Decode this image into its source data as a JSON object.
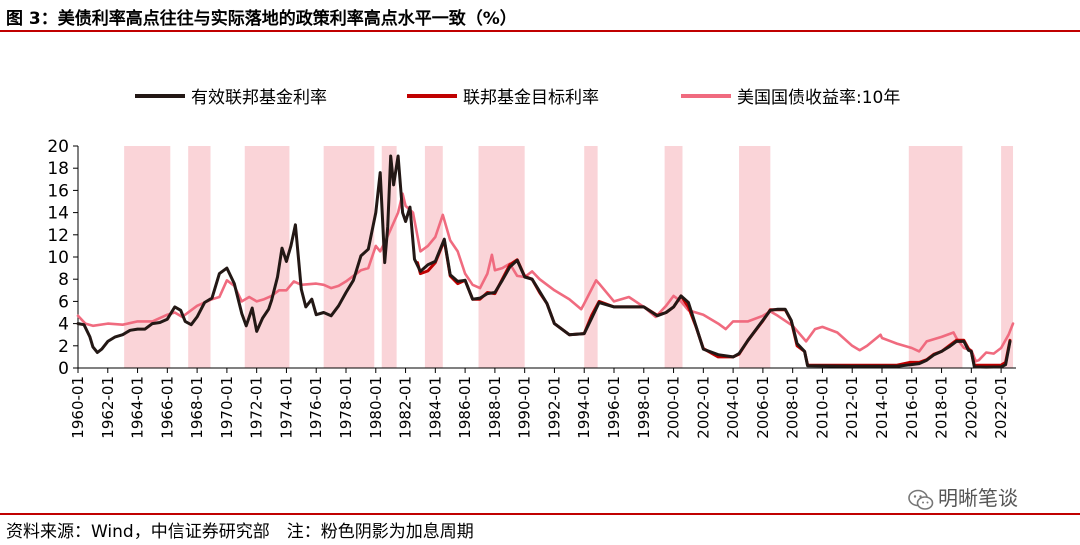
{
  "figure": {
    "title": "图 3：美债利率高点往往与实际落地的政策利率高点水平一致（%）",
    "source": "资料来源：Wind，中信证券研究部　注：粉色阴影为加息周期",
    "watermark": "明晰笔谈"
  },
  "colors": {
    "effective_rate": "#231815",
    "target_rate": "#c00000",
    "treasury_10y": "#f06b7f",
    "shade": "#fad4d8",
    "rule": "#c00000"
  },
  "chart_data": {
    "type": "line",
    "ylim": [
      0,
      20
    ],
    "yticks": [
      0,
      2,
      4,
      6,
      8,
      10,
      12,
      14,
      16,
      18,
      20
    ],
    "xlim": [
      1960.0,
      2023.0
    ],
    "xtick_labels": [
      "1960-01",
      "1962-01",
      "1964-01",
      "1966-01",
      "1968-01",
      "1970-01",
      "1972-01",
      "1974-01",
      "1976-01",
      "1978-01",
      "1980-01",
      "1982-01",
      "1984-01",
      "1986-01",
      "1988-01",
      "1990-01",
      "1992-01",
      "1994-01",
      "1996-01",
      "1998-01",
      "2000-01",
      "2002-01",
      "2004-01",
      "2006-01",
      "2008-01",
      "2010-01",
      "2012-01",
      "2014-01",
      "2016-01",
      "2018-01",
      "2020-01",
      "2022-01"
    ],
    "xtick_values": [
      1960,
      1962,
      1964,
      1966,
      1968,
      1970,
      1972,
      1974,
      1976,
      1978,
      1980,
      1982,
      1984,
      1986,
      1988,
      1990,
      1992,
      1994,
      1996,
      1998,
      2000,
      2002,
      2004,
      2006,
      2008,
      2010,
      2012,
      2014,
      2016,
      2018,
      2020,
      2022
    ],
    "legend_position": "top",
    "shaded_periods": [
      [
        1963.1,
        1966.2
      ],
      [
        1967.4,
        1968.9
      ],
      [
        1971.2,
        1974.2
      ],
      [
        1976.5,
        1979.9
      ],
      [
        1980.4,
        1981.4
      ],
      [
        1983.3,
        1984.5
      ],
      [
        1986.9,
        1990.0
      ],
      [
        1994.0,
        1994.9
      ],
      [
        1999.4,
        2000.6
      ],
      [
        2004.4,
        2006.5
      ],
      [
        2015.8,
        2019.4
      ],
      [
        2022.0,
        2022.8
      ]
    ],
    "series": [
      {
        "name": "有效联邦基金利率",
        "color_key": "effective_rate",
        "x": [
          1960.0,
          1960.4,
          1960.8,
          1961.0,
          1961.3,
          1961.6,
          1962.0,
          1962.5,
          1963.0,
          1963.5,
          1964.0,
          1964.5,
          1965.0,
          1965.5,
          1966.0,
          1966.5,
          1966.9,
          1967.2,
          1967.6,
          1968.0,
          1968.5,
          1969.0,
          1969.5,
          1970.0,
          1970.5,
          1971.0,
          1971.3,
          1971.7,
          1972.0,
          1972.4,
          1972.8,
          1973.0,
          1973.4,
          1973.7,
          1974.0,
          1974.3,
          1974.6,
          1975.0,
          1975.3,
          1975.7,
          1976.0,
          1976.5,
          1977.0,
          1977.5,
          1978.0,
          1978.5,
          1979.0,
          1979.5,
          1980.0,
          1980.3,
          1980.6,
          1980.8,
          1981.0,
          1981.2,
          1981.5,
          1981.8,
          1982.0,
          1982.3,
          1982.6,
          1983.0,
          1983.5,
          1984.0,
          1984.6,
          1985.0,
          1985.5,
          1986.0,
          1986.5,
          1987.0,
          1987.5,
          1988.0,
          1988.5,
          1989.0,
          1989.5,
          1990.0,
          1990.5,
          1991.0,
          1991.5,
          1992.0,
          1993.0,
          1994.0,
          1994.5,
          1995.0,
          1996.0,
          1997.0,
          1998.0,
          1998.9,
          1999.5,
          2000.0,
          2000.5,
          2001.0,
          2001.5,
          2002.0,
          2003.0,
          2004.0,
          2004.4,
          2005.0,
          2006.0,
          2006.5,
          2007.0,
          2007.5,
          2007.9,
          2008.3,
          2008.8,
          2009.0,
          2012.0,
          2015.0,
          2015.9,
          2016.5,
          2017.0,
          2017.5,
          2018.0,
          2018.5,
          2019.0,
          2019.5,
          2019.8,
          2020.0,
          2020.2,
          2021.0,
          2022.0,
          2022.3,
          2022.6
        ],
        "y": [
          4.0,
          3.9,
          2.8,
          1.9,
          1.4,
          1.7,
          2.4,
          2.8,
          3.0,
          3.4,
          3.5,
          3.5,
          4.0,
          4.1,
          4.4,
          5.5,
          5.2,
          4.2,
          3.9,
          4.6,
          5.9,
          6.3,
          8.5,
          9.0,
          7.6,
          4.9,
          3.8,
          5.4,
          3.3,
          4.5,
          5.3,
          6.1,
          8.2,
          10.8,
          9.6,
          11.0,
          12.9,
          7.1,
          5.5,
          6.2,
          4.8,
          5.0,
          4.7,
          5.6,
          6.8,
          7.9,
          10.1,
          10.7,
          14.0,
          17.6,
          9.5,
          12.7,
          19.1,
          16.5,
          19.1,
          14.0,
          13.2,
          14.5,
          9.8,
          8.7,
          9.3,
          9.6,
          11.6,
          8.4,
          7.8,
          7.9,
          6.2,
          6.3,
          6.7,
          6.8,
          7.9,
          9.1,
          9.7,
          8.2,
          8.0,
          6.9,
          5.8,
          4.0,
          3.0,
          3.1,
          4.5,
          5.9,
          5.5,
          5.5,
          5.5,
          4.7,
          5.0,
          5.5,
          6.5,
          5.9,
          3.8,
          1.7,
          1.2,
          1.0,
          1.3,
          2.5,
          4.3,
          5.2,
          5.3,
          5.3,
          4.3,
          2.2,
          1.5,
          0.2,
          0.15,
          0.15,
          0.3,
          0.4,
          0.7,
          1.2,
          1.5,
          1.9,
          2.4,
          2.4,
          1.6,
          1.5,
          0.1,
          0.08,
          0.1,
          0.3,
          2.4
        ]
      },
      {
        "name": "联邦基金目标利率",
        "color_key": "target_rate",
        "x": [
          1982.8,
          1983.0,
          1983.5,
          1984.0,
          1984.6,
          1985.0,
          1985.5,
          1986.0,
          1986.5,
          1987.0,
          1987.5,
          1988.0,
          1988.5,
          1989.0,
          1989.5,
          1990.0,
          1990.5,
          1991.0,
          1991.5,
          1992.0,
          1993.0,
          1994.0,
          1994.5,
          1995.0,
          1996.0,
          1997.0,
          1998.0,
          1998.9,
          1999.5,
          2000.0,
          2000.5,
          2001.0,
          2001.5,
          2002.0,
          2003.0,
          2004.0,
          2004.4,
          2005.0,
          2006.0,
          2006.5,
          2007.0,
          2007.5,
          2007.9,
          2008.3,
          2008.8,
          2009.0,
          2012.0,
          2015.0,
          2015.9,
          2016.5,
          2017.0,
          2017.5,
          2018.0,
          2018.5,
          2019.0,
          2019.5,
          2019.8,
          2020.0,
          2020.2,
          2021.0,
          2022.0,
          2022.3,
          2022.6
        ],
        "y": [
          9.5,
          8.5,
          8.75,
          9.5,
          11.5,
          8.3,
          7.6,
          7.9,
          6.2,
          6.2,
          6.8,
          6.7,
          8.0,
          9.3,
          9.75,
          8.25,
          8.0,
          6.8,
          5.8,
          4.0,
          3.0,
          3.1,
          4.75,
          6.0,
          5.5,
          5.5,
          5.5,
          4.75,
          5.0,
          5.5,
          6.5,
          5.5,
          3.75,
          1.75,
          1.0,
          1.0,
          1.25,
          2.5,
          4.25,
          5.25,
          5.25,
          5.25,
          4.25,
          2.0,
          1.5,
          0.25,
          0.25,
          0.25,
          0.5,
          0.5,
          0.75,
          1.25,
          1.5,
          2.0,
          2.5,
          2.5,
          1.75,
          1.5,
          0.25,
          0.25,
          0.25,
          0.5,
          2.5
        ]
      },
      {
        "name": "美国国债收益率:10年",
        "color_key": "treasury_10y",
        "x": [
          1960.0,
          1960.5,
          1961.0,
          1962.0,
          1963.0,
          1964.0,
          1965.0,
          1966.0,
          1966.5,
          1967.0,
          1968.0,
          1969.0,
          1969.5,
          1970.0,
          1970.5,
          1971.0,
          1971.5,
          1972.0,
          1972.5,
          1973.0,
          1973.5,
          1974.0,
          1974.5,
          1975.0,
          1976.0,
          1976.5,
          1977.0,
          1977.5,
          1978.0,
          1979.0,
          1979.5,
          1980.0,
          1980.3,
          1980.6,
          1981.0,
          1981.5,
          1981.8,
          1982.0,
          1982.5,
          1983.0,
          1983.5,
          1984.0,
          1984.5,
          1985.0,
          1985.5,
          1986.0,
          1986.5,
          1987.0,
          1987.5,
          1987.8,
          1988.0,
          1988.5,
          1989.0,
          1989.5,
          1990.0,
          1990.5,
          1991.0,
          1992.0,
          1993.0,
          1993.8,
          1994.0,
          1994.8,
          1995.0,
          1996.0,
          1997.0,
          1998.0,
          1998.8,
          1999.5,
          2000.0,
          2000.5,
          2001.0,
          2002.0,
          2003.0,
          2003.5,
          2004.0,
          2005.0,
          2006.0,
          2006.5,
          2007.0,
          2008.0,
          2008.9,
          2009.5,
          2010.0,
          2011.0,
          2012.0,
          2012.5,
          2013.0,
          2013.9,
          2014.0,
          2015.0,
          2016.0,
          2016.5,
          2017.0,
          2018.0,
          2018.8,
          2019.0,
          2019.5,
          2020.0,
          2020.3,
          2020.5,
          2021.0,
          2021.5,
          2022.0,
          2022.5,
          2022.8
        ],
        "y": [
          4.7,
          4.0,
          3.8,
          4.0,
          3.9,
          4.2,
          4.2,
          4.8,
          5.0,
          4.6,
          5.6,
          6.2,
          6.4,
          7.9,
          7.4,
          6.0,
          6.4,
          6.0,
          6.2,
          6.5,
          7.0,
          7.0,
          7.8,
          7.5,
          7.6,
          7.5,
          7.2,
          7.4,
          7.8,
          8.8,
          9.0,
          11.0,
          10.5,
          11.3,
          12.5,
          14.0,
          15.7,
          14.6,
          14.0,
          10.5,
          11.0,
          11.8,
          13.8,
          11.5,
          10.5,
          8.5,
          7.5,
          7.2,
          8.5,
          10.2,
          8.8,
          9.0,
          9.4,
          8.3,
          8.2,
          8.7,
          8.0,
          7.0,
          6.2,
          5.3,
          5.8,
          7.9,
          7.6,
          6.0,
          6.4,
          5.5,
          4.6,
          5.6,
          6.5,
          6.0,
          5.2,
          4.8,
          4.0,
          3.5,
          4.2,
          4.2,
          4.7,
          5.1,
          4.7,
          3.8,
          2.4,
          3.5,
          3.7,
          3.2,
          2.0,
          1.6,
          2.0,
          3.0,
          2.7,
          2.2,
          1.8,
          1.5,
          2.4,
          2.8,
          3.2,
          2.7,
          1.8,
          1.6,
          0.6,
          0.7,
          1.4,
          1.3,
          1.8,
          3.0,
          4.0
        ]
      }
    ]
  }
}
